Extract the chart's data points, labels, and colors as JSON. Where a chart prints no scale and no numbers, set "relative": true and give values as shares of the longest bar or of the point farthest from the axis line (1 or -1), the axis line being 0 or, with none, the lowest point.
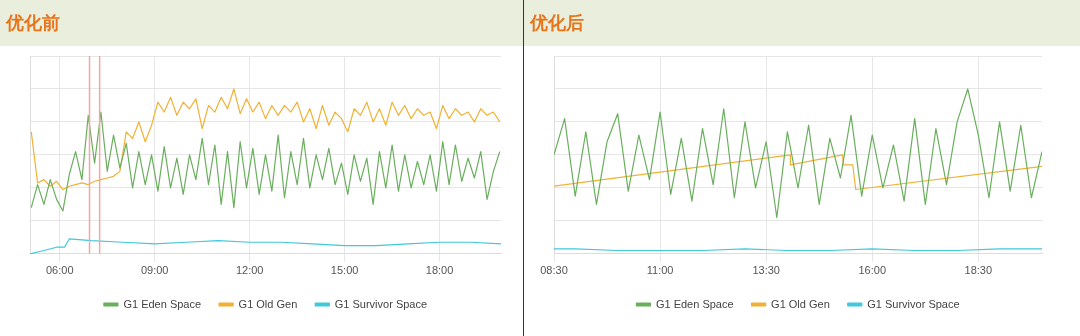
{
  "chart_data": [
    {
      "type": "line",
      "title": "优化前",
      "relative": true,
      "grid": true,
      "legend": "bottom",
      "marker": "none",
      "line_style": "solid",
      "xlim": [
        5.06,
        19.94
      ],
      "xticks": [
        {
          "value": 6,
          "label": "06:00"
        },
        {
          "value": 9,
          "label": "09:00"
        },
        {
          "value": 12,
          "label": "12:00"
        },
        {
          "value": 15,
          "label": "15:00"
        },
        {
          "value": 18,
          "label": "18:00"
        }
      ],
      "x": [
        5.1,
        5.3,
        5.5,
        5.7,
        5.9,
        6.1,
        6.3,
        6.5,
        6.7,
        6.9,
        7.1,
        7.3,
        7.5,
        7.7,
        7.9,
        8.1,
        8.3,
        8.5,
        8.7,
        8.9,
        9.1,
        9.3,
        9.5,
        9.7,
        9.9,
        10.1,
        10.3,
        10.5,
        10.7,
        10.9,
        11.1,
        11.3,
        11.5,
        11.7,
        11.9,
        12.1,
        12.3,
        12.5,
        12.7,
        12.9,
        13.1,
        13.3,
        13.5,
        13.7,
        13.9,
        14.1,
        14.3,
        14.5,
        14.7,
        14.9,
        15.1,
        15.3,
        15.5,
        15.7,
        15.9,
        16.1,
        16.3,
        16.5,
        16.7,
        16.9,
        17.1,
        17.3,
        17.5,
        17.7,
        17.9,
        18.1,
        18.3,
        18.5,
        18.7,
        18.9,
        19.1,
        19.3,
        19.5,
        19.7,
        19.9
      ],
      "series": [
        {
          "name": "G1 Eden Space",
          "color": "#6aaf5e",
          "values": [
            0.28,
            0.42,
            0.3,
            0.45,
            0.33,
            0.26,
            0.48,
            0.62,
            0.45,
            0.84,
            0.55,
            0.86,
            0.5,
            0.72,
            0.52,
            0.67,
            0.4,
            0.62,
            0.42,
            0.6,
            0.38,
            0.65,
            0.4,
            0.58,
            0.36,
            0.6,
            0.45,
            0.7,
            0.42,
            0.66,
            0.3,
            0.62,
            0.28,
            0.68,
            0.4,
            0.64,
            0.36,
            0.6,
            0.38,
            0.72,
            0.34,
            0.62,
            0.42,
            0.7,
            0.4,
            0.6,
            0.45,
            0.64,
            0.42,
            0.55,
            0.36,
            0.6,
            0.44,
            0.58,
            0.3,
            0.62,
            0.4,
            0.66,
            0.38,
            0.6,
            0.4,
            0.56,
            0.42,
            0.6,
            0.38,
            0.68,
            0.42,
            0.66,
            0.44,
            0.58,
            0.46,
            0.62,
            0.33,
            0.5,
            0.62
          ]
        },
        {
          "name": "G1 Old Gen",
          "color": "#f2b134",
          "values": [
            0.74,
            0.43,
            0.45,
            0.41,
            0.44,
            0.39,
            0.41,
            0.42,
            0.43,
            0.42,
            0.44,
            0.45,
            0.46,
            0.47,
            0.5,
            0.74,
            0.7,
            0.8,
            0.68,
            0.78,
            0.92,
            0.86,
            0.95,
            0.84,
            0.92,
            0.88,
            0.94,
            0.76,
            0.9,
            0.86,
            0.95,
            0.88,
            1.0,
            0.85,
            0.94,
            0.86,
            0.92,
            0.82,
            0.9,
            0.84,
            0.9,
            0.86,
            0.92,
            0.8,
            0.88,
            0.76,
            0.9,
            0.78,
            0.86,
            0.82,
            0.74,
            0.88,
            0.84,
            0.92,
            0.8,
            0.88,
            0.78,
            0.92,
            0.84,
            0.9,
            0.82,
            0.88,
            0.84,
            0.86,
            0.76,
            0.9,
            0.82,
            0.88,
            0.84,
            0.86,
            0.8,
            0.88,
            0.84,
            0.86,
            0.8
          ]
        },
        {
          "name": "G1 Survivor Space",
          "color": "#40c8dc",
          "x": [
            5.06,
            5.5,
            5.9,
            6.15,
            6.3,
            7,
            8,
            9,
            10,
            11,
            12,
            13,
            14,
            15,
            16,
            17,
            18,
            19,
            19.94
          ],
          "values": [
            0.0,
            0.02,
            0.04,
            0.04,
            0.09,
            0.08,
            0.07,
            0.06,
            0.07,
            0.08,
            0.07,
            0.07,
            0.06,
            0.05,
            0.05,
            0.06,
            0.07,
            0.07,
            0.06
          ]
        }
      ],
      "ref_lines": [
        {
          "axis": "x",
          "value": 6.94,
          "color": "#f4a6a6"
        },
        {
          "axis": "x",
          "value": 7.26,
          "color": "#f4a6a6"
        }
      ]
    },
    {
      "type": "line",
      "title": "优化后",
      "relative": true,
      "grid": true,
      "legend": "bottom",
      "marker": "none",
      "line_style": "solid",
      "xlim": [
        8.5,
        20.0
      ],
      "xticks": [
        {
          "value": 8.5,
          "label": "08:30"
        },
        {
          "value": 11,
          "label": "11:00"
        },
        {
          "value": 13.5,
          "label": "13:30"
        },
        {
          "value": 16,
          "label": "16:00"
        },
        {
          "value": 18.5,
          "label": "18:30"
        }
      ],
      "x": [
        8.5,
        8.75,
        9.0,
        9.25,
        9.5,
        9.75,
        10.0,
        10.25,
        10.5,
        10.75,
        11.0,
        11.25,
        11.5,
        11.75,
        12.0,
        12.25,
        12.5,
        12.75,
        13.0,
        13.25,
        13.5,
        13.75,
        14.0,
        14.25,
        14.5,
        14.75,
        15.0,
        15.25,
        15.5,
        15.75,
        16.0,
        16.25,
        16.5,
        16.75,
        17.0,
        17.25,
        17.5,
        17.75,
        18.0,
        18.25,
        18.5,
        18.75,
        19.0,
        19.25,
        19.5,
        19.75,
        20.0
      ],
      "series": [
        {
          "name": "G1 Eden Space",
          "color": "#6aaf5e",
          "values": [
            0.6,
            0.82,
            0.35,
            0.74,
            0.3,
            0.68,
            0.85,
            0.38,
            0.72,
            0.45,
            0.86,
            0.36,
            0.7,
            0.32,
            0.76,
            0.42,
            0.88,
            0.34,
            0.8,
            0.4,
            0.68,
            0.22,
            0.74,
            0.4,
            0.78,
            0.3,
            0.7,
            0.46,
            0.84,
            0.35,
            0.72,
            0.4,
            0.66,
            0.32,
            0.82,
            0.3,
            0.76,
            0.42,
            0.8,
            1.0,
            0.72,
            0.34,
            0.8,
            0.38,
            0.78,
            0.34,
            0.62
          ]
        },
        {
          "name": "G1 Old Gen",
          "color": "#f2b134",
          "x": [
            8.5,
            14.07,
            14.07,
            15.3,
            15.32,
            15.54,
            15.61,
            20.0
          ],
          "values": [
            0.41,
            0.6,
            0.54,
            0.6,
            0.54,
            0.54,
            0.39,
            0.53
          ]
        },
        {
          "name": "G1 Survivor Space",
          "color": "#40c8dc",
          "x": [
            8.5,
            9,
            10,
            11,
            12,
            13,
            14,
            15,
            16,
            17,
            18,
            19,
            20.0
          ],
          "values": [
            0.03,
            0.03,
            0.02,
            0.02,
            0.02,
            0.03,
            0.02,
            0.02,
            0.03,
            0.02,
            0.02,
            0.03,
            0.03
          ]
        }
      ]
    }
  ]
}
